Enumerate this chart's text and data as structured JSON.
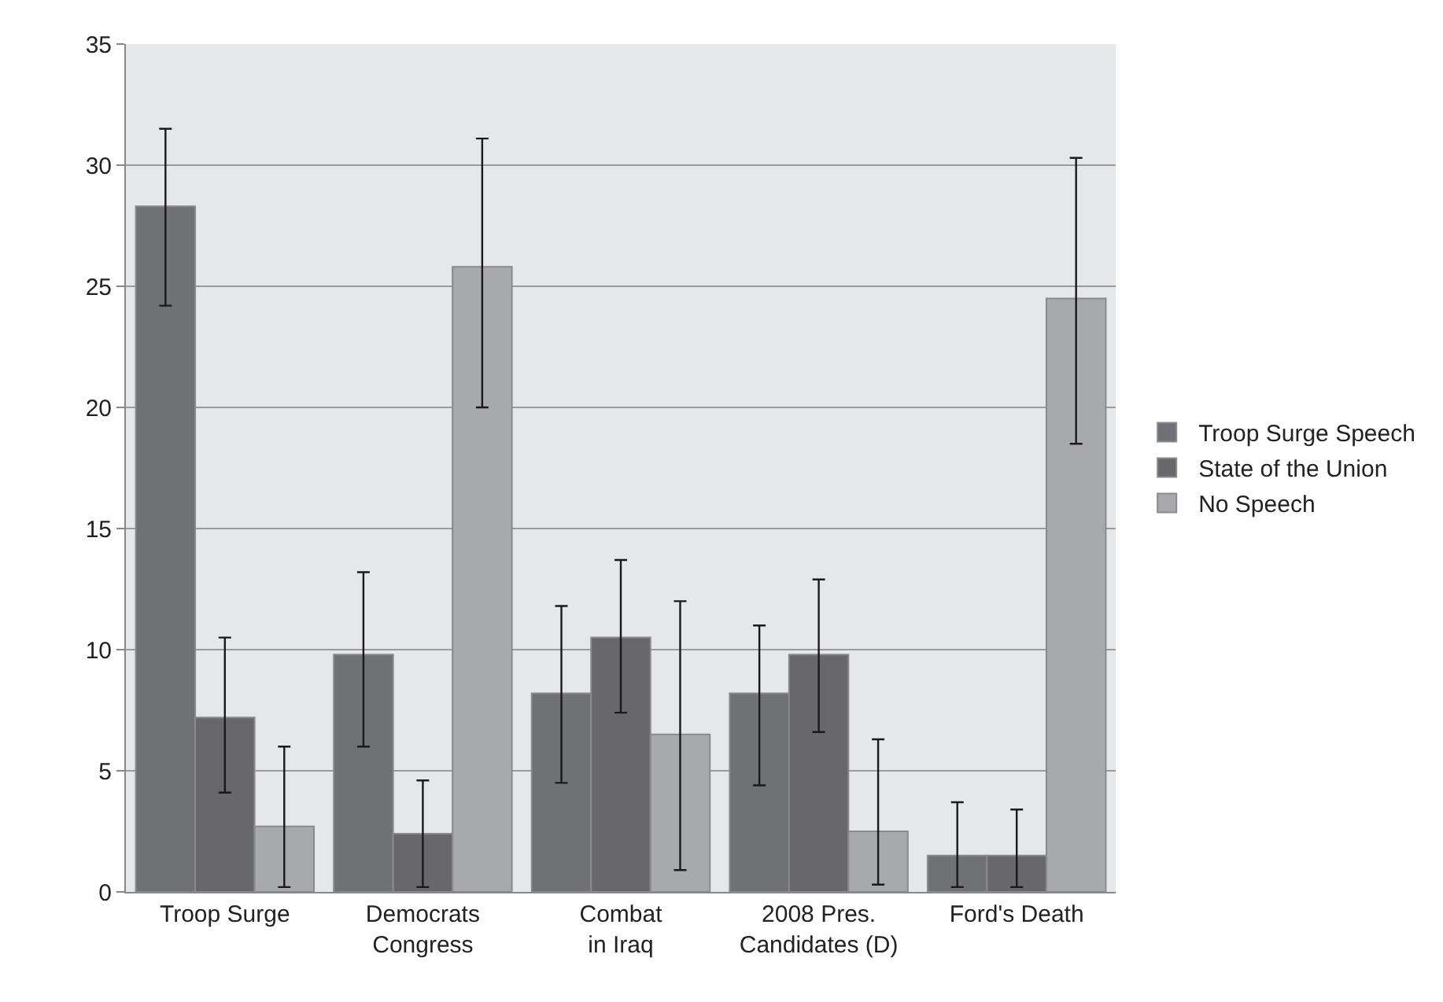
{
  "chart_data": {
    "type": "bar",
    "categories": [
      "Troop Surge",
      "Democrats Congress",
      "Combat in Iraq",
      "2008 Pres. Candidates (D)",
      "Ford's Death"
    ],
    "series": [
      {
        "name": "Troop Surge Speech",
        "color": "#707175",
        "values": [
          28.3,
          9.8,
          8.2,
          8.2,
          1.5
        ],
        "errors": [
          [
            24.2,
            31.5
          ],
          [
            6.0,
            13.2
          ],
          [
            4.5,
            11.8
          ],
          [
            4.4,
            11.0
          ],
          [
            0.2,
            3.7
          ]
        ]
      },
      {
        "name": "State of the Union",
        "color": "#68686a",
        "values": [
          7.2,
          2.4,
          10.5,
          9.8,
          1.5
        ],
        "errors": [
          [
            4.1,
            10.5
          ],
          [
            0.2,
            4.6
          ],
          [
            7.4,
            13.7
          ],
          [
            6.6,
            12.9
          ],
          [
            0.2,
            3.4
          ]
        ]
      },
      {
        "name": "No Speech",
        "color": "#a8a9ad",
        "values": [
          2.7,
          25.8,
          6.5,
          2.5,
          24.5
        ],
        "errors": [
          [
            0.2,
            6.0
          ],
          [
            20.0,
            31.1
          ],
          [
            0.9,
            12.0
          ],
          [
            0.3,
            6.3
          ],
          [
            18.5,
            30.3
          ]
        ]
      }
    ],
    "ylim": [
      0,
      35
    ],
    "yticks": [
      0,
      5,
      10,
      15,
      20,
      25,
      30,
      35
    ],
    "grid": "y",
    "legend": "right"
  }
}
